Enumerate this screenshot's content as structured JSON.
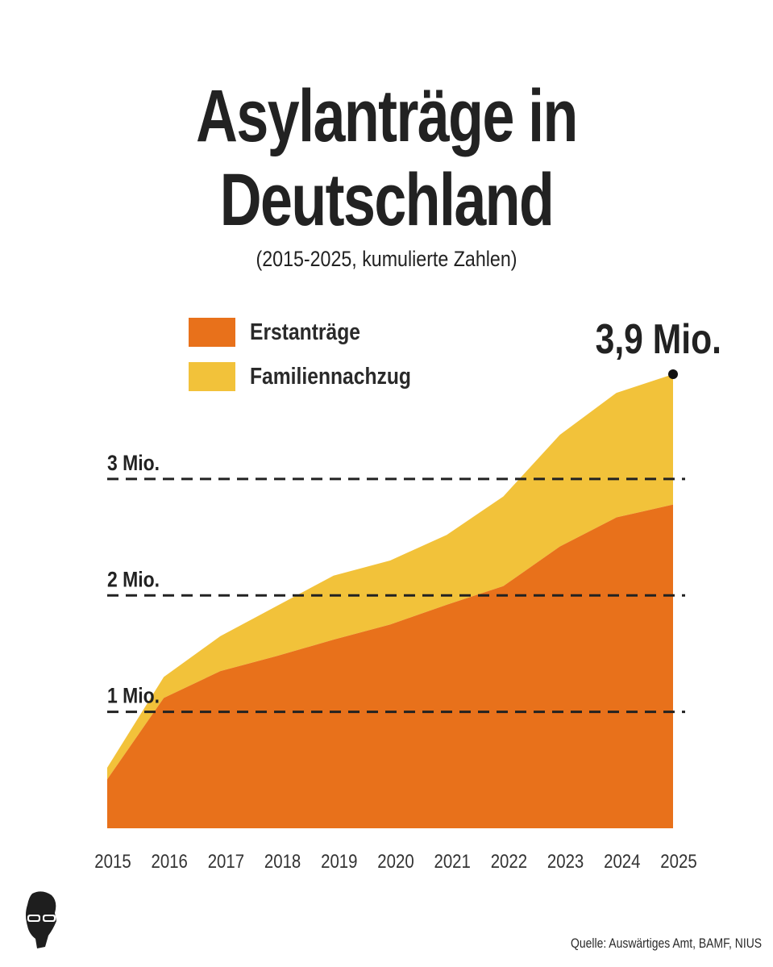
{
  "title": "Asylanträge in Deutschland",
  "subtitle": "(2015-2025, kumulierte Zahlen)",
  "source": "Quelle: Auswärtiges Amt, BAMF, NIUS",
  "colors": {
    "erstantraege": "#E8711B",
    "familiennachzug": "#F2C23A",
    "text": "#222222"
  },
  "chart_data": {
    "type": "area",
    "stacked": true,
    "x": [
      "2015",
      "2016",
      "2017",
      "2018",
      "2019",
      "2020",
      "2021",
      "2022",
      "2023",
      "2024",
      "2025"
    ],
    "series": [
      {
        "name": "Erstanträge",
        "values": [
          0.42,
          1.12,
          1.35,
          1.48,
          1.62,
          1.75,
          1.92,
          2.08,
          2.42,
          2.67,
          2.78
        ]
      },
      {
        "name": "Familiennachzug",
        "values": [
          0.1,
          0.18,
          0.3,
          0.43,
          0.55,
          0.55,
          0.6,
          0.77,
          0.96,
          1.07,
          1.12
        ]
      }
    ],
    "reference_lines": [
      {
        "value": 1,
        "label": "1 Mio."
      },
      {
        "value": 2,
        "label": "2 Mio."
      },
      {
        "value": 3,
        "label": "3 Mio."
      }
    ],
    "annotation": {
      "x": "2025",
      "value": 3.9,
      "label": "3,9 Mio."
    },
    "ylim": [
      0,
      3.9
    ],
    "legend_position": "top-left",
    "grid": false
  }
}
